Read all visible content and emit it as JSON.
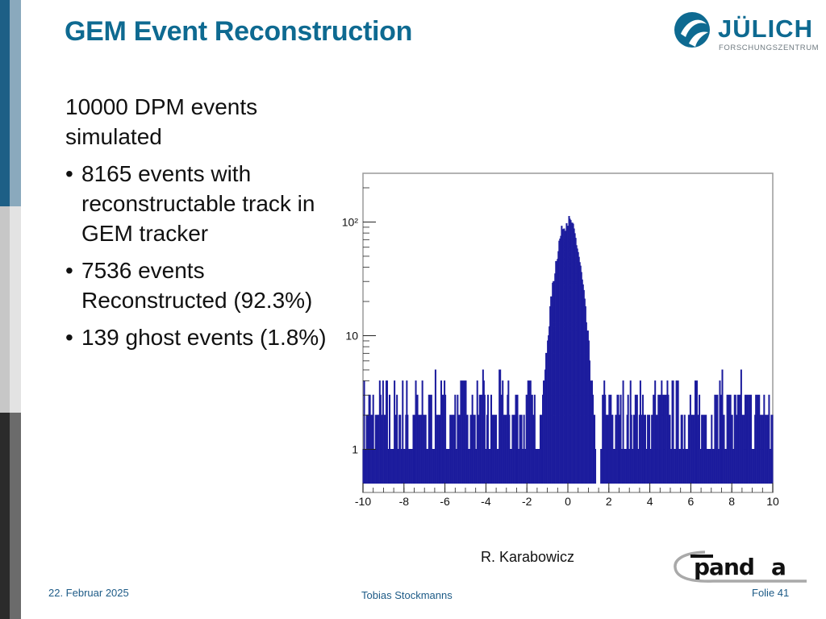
{
  "slide": {
    "title": "GEM Event Reconstruction",
    "intro": "10000 DPM events simulated",
    "bullets": [
      "8165 events with reconstructable track in GEM tracker",
      "7536 events Reconstructed (92.3%)",
      "139 ghost events (1.8%)"
    ],
    "credit": "R. Karabowicz"
  },
  "logo": {
    "name": "JÜLICH",
    "subtitle": "FORSCHUNGSZENTRUM"
  },
  "footer": {
    "date": "22. Februar 2025",
    "author": "Tobias Stockmanns",
    "page": "Folie 41"
  },
  "colors": {
    "title": "#0e6a91",
    "histogram": "#1a1a9c",
    "footer_text": "#1c5a86",
    "stripe_dark": "#1d5f86",
    "stripe_grey": "#c7c7c7",
    "stripe_black": "#2b2b2b"
  },
  "chart_data": {
    "type": "histogram",
    "title": "",
    "xlabel": "",
    "ylabel": "",
    "xlim": [
      -10,
      10
    ],
    "y_scale": "log",
    "ylim": [
      0.5,
      200
    ],
    "x_ticks": [
      -10,
      -8,
      -6,
      -4,
      -2,
      0,
      2,
      4,
      6,
      8,
      10
    ],
    "y_ticks": [
      {
        "value": 1,
        "label": "1"
      },
      {
        "value": 10,
        "label": "10"
      },
      {
        "value": 100,
        "label": "10²"
      }
    ],
    "grid": false,
    "legend": "none",
    "series": [
      {
        "bin_width": 0.04,
        "peak_center": 0,
        "peak_value": 100,
        "peak_sigma": 0.45,
        "background_levels": [
          1,
          2,
          3,
          4,
          5,
          6
        ],
        "background_range": [
          -10,
          10
        ],
        "empty_region": [
          -1.2,
          1.6
        ]
      }
    ]
  }
}
